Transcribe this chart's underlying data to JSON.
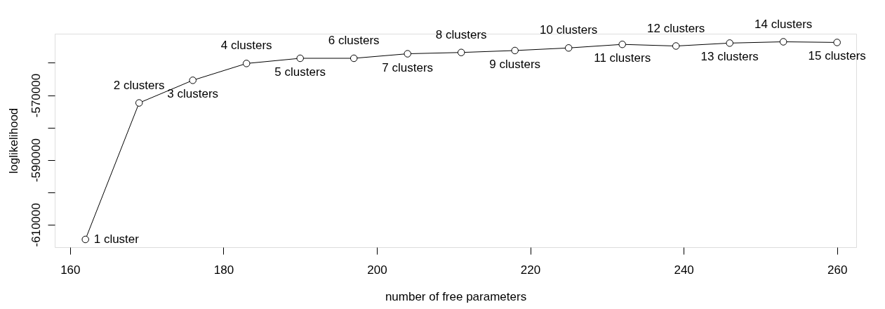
{
  "chart_data": {
    "type": "line",
    "xlabel": "number of free parameters",
    "ylabel": "loglikelihood",
    "x": [
      162,
      169,
      176,
      183,
      190,
      197,
      204,
      211,
      218,
      225,
      232,
      239,
      246,
      253,
      260
    ],
    "series": [
      {
        "color": "#000000",
        "values": [
          -614600,
          -572400,
          -565400,
          -560200,
          -558600,
          -558600,
          -557200,
          -556800,
          -556200,
          -555400,
          -554300,
          -554800,
          -553900,
          -553500,
          -553700
        ]
      }
    ],
    "marker": "circle",
    "line_style": "solid",
    "grid": false,
    "xlim": [
      158,
      262.5
    ],
    "ylim": [
      -617000,
      -551000
    ],
    "xticks": [
      160,
      180,
      200,
      220,
      240,
      260
    ],
    "yticks": [
      {
        "value": -610000,
        "label": "-610000"
      },
      {
        "value": -600000,
        "label": null
      },
      {
        "value": -590000,
        "label": "-590000"
      },
      {
        "value": -580000,
        "label": null
      },
      {
        "value": -570000,
        "label": "-570000"
      },
      {
        "value": -560000,
        "label": null
      }
    ],
    "annotations": [
      {
        "text": "1 cluster",
        "x": 162,
        "y": -614600
      },
      {
        "text": "2 clusters",
        "x": 169,
        "y": -572400
      },
      {
        "text": "3 clusters",
        "x": 176,
        "y": -565400
      },
      {
        "text": "4 clusters",
        "x": 183,
        "y": -560200
      },
      {
        "text": "5 clusters",
        "x": 190,
        "y": -558600
      },
      {
        "text": "6 clusters",
        "x": 197,
        "y": -558600
      },
      {
        "text": "7 clusters",
        "x": 204,
        "y": -557200
      },
      {
        "text": "8 clusters",
        "x": 211,
        "y": -556800
      },
      {
        "text": "9 clusters",
        "x": 218,
        "y": -556200
      },
      {
        "text": "10 clusters",
        "x": 225,
        "y": -555400
      },
      {
        "text": "11 clusters",
        "x": 232,
        "y": -554300
      },
      {
        "text": "12 clusters",
        "x": 239,
        "y": -554800
      },
      {
        "text": "13 clusters",
        "x": 246,
        "y": -553900
      },
      {
        "text": "14 clusters",
        "x": 253,
        "y": -553500
      },
      {
        "text": "15 clusters",
        "x": 260,
        "y": -553700
      }
    ]
  }
}
